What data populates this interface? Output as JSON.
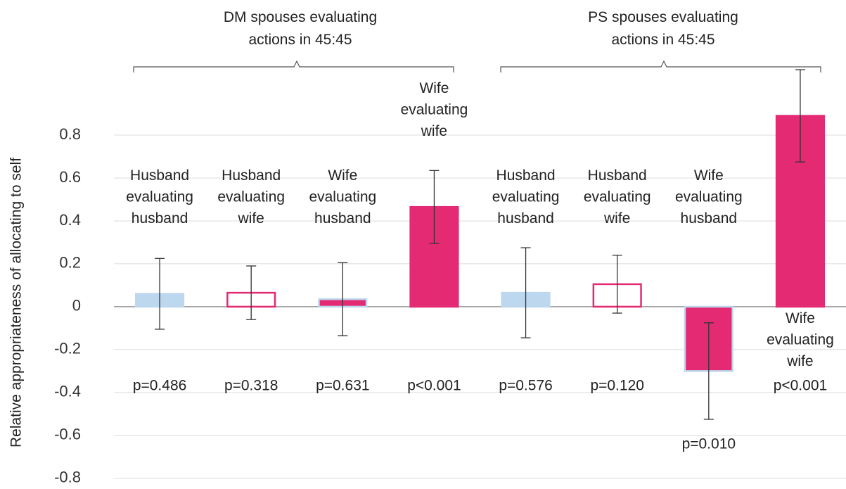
{
  "chart_data": {
    "type": "bar",
    "y_label": "Relative appropriateness of allocating to self",
    "groups": [
      {
        "label": [
          "DM spouses evaluating",
          "actions in 45:45"
        ]
      },
      {
        "label": [
          "PS spouses evaluating",
          "actions in 45:45"
        ]
      }
    ],
    "categories": [
      [
        "Husband",
        "evaluating",
        "husband"
      ],
      [
        "Husband",
        "evaluating",
        "wife"
      ],
      [
        "Wife",
        "evaluating",
        "husband"
      ],
      [
        "Wife",
        "evaluating",
        "wife"
      ],
      [
        "Husband",
        "evaluating",
        "husband"
      ],
      [
        "Husband",
        "evaluating",
        "wife"
      ],
      [
        "Wife",
        "evaluating",
        "husband"
      ],
      [
        "Wife",
        "evaluating",
        "wife"
      ]
    ],
    "series": [
      {
        "values": [
          0.06,
          0.065,
          0.035,
          0.465,
          0.065,
          0.105,
          -0.3,
          0.89
        ],
        "errors": [
          0.165,
          0.125,
          0.17,
          0.17,
          0.21,
          0.135,
          0.225,
          0.215
        ],
        "colors": [
          "#bdd7ee",
          "#ffffff",
          "#e32a73",
          "#e32a73",
          "#bdd7ee",
          "#ffffff",
          "#e32a73",
          "#e32a73"
        ],
        "edge_colors": [
          "#bdd7ee",
          "#e32a73",
          "#bdd7ee",
          "#e32a73",
          "#bdd7ee",
          "#e32a73",
          "#bdd7ee",
          "#e32a73"
        ]
      }
    ],
    "annotations": [
      "p=0.486",
      "p=0.318",
      "p=0.631",
      "p<0.001",
      "p=0.576",
      "p=0.120",
      "p=0.010",
      "p<0.001"
    ],
    "ylim": [
      -0.85,
      1.43
    ],
    "yticks": [
      -0.8,
      -0.6,
      -0.4,
      -0.2,
      0,
      0.2,
      0.4,
      0.6,
      0.8
    ],
    "grid": true
  }
}
